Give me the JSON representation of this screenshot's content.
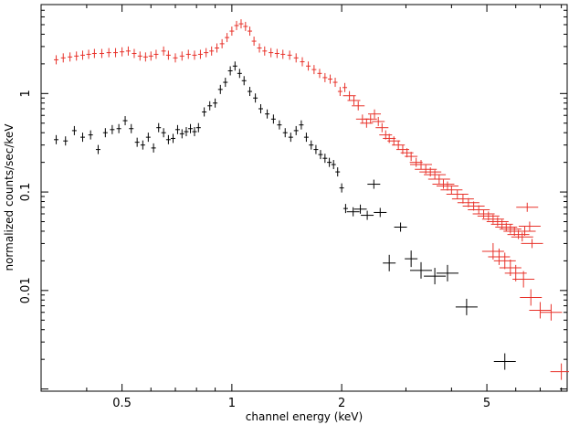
{
  "chart_data": {
    "type": "scatter",
    "xlabel": "channel energy (keV)",
    "ylabel": "normalized counts/sec/keV",
    "x_scale": "log",
    "y_scale": "log",
    "xlim": [
      0.3,
      8.3
    ],
    "ylim": [
      0.00095,
      8.0
    ],
    "x_ticks": [
      {
        "value": 0.5,
        "label": "0.5"
      },
      {
        "value": 1,
        "label": "1"
      },
      {
        "value": 2,
        "label": "2"
      },
      {
        "value": 5,
        "label": "5"
      }
    ],
    "y_ticks": [
      {
        "value": 1,
        "label": "1"
      },
      {
        "value": 0.1,
        "label": "0.1"
      },
      {
        "value": 0.01,
        "label": "0.01"
      }
    ],
    "grid": false,
    "legend": "none",
    "series": [
      {
        "color": "#e8322a",
        "points": [
          [
            0.33,
            2.2
          ],
          [
            0.345,
            2.3
          ],
          [
            0.36,
            2.35
          ],
          [
            0.375,
            2.4
          ],
          [
            0.39,
            2.45
          ],
          [
            0.405,
            2.5
          ],
          [
            0.42,
            2.55
          ],
          [
            0.44,
            2.55
          ],
          [
            0.46,
            2.6
          ],
          [
            0.48,
            2.6
          ],
          [
            0.5,
            2.65
          ],
          [
            0.52,
            2.7
          ],
          [
            0.54,
            2.55
          ],
          [
            0.56,
            2.4
          ],
          [
            0.58,
            2.35
          ],
          [
            0.6,
            2.4
          ],
          [
            0.62,
            2.5
          ],
          [
            0.65,
            2.7
          ],
          [
            0.67,
            2.45
          ],
          [
            0.7,
            2.3
          ],
          [
            0.73,
            2.4
          ],
          [
            0.76,
            2.5
          ],
          [
            0.79,
            2.45
          ],
          [
            0.82,
            2.5
          ],
          [
            0.85,
            2.6
          ],
          [
            0.88,
            2.7
          ],
          [
            0.91,
            2.9
          ],
          [
            0.94,
            3.2
          ],
          [
            0.97,
            3.7
          ],
          [
            1.0,
            4.3
          ],
          [
            1.03,
            4.9
          ],
          [
            1.06,
            5.1
          ],
          [
            1.09,
            4.8
          ],
          [
            1.12,
            4.3
          ],
          [
            1.15,
            3.4
          ],
          [
            1.19,
            2.9
          ],
          [
            1.23,
            2.7
          ],
          [
            1.28,
            2.6
          ],
          [
            1.33,
            2.55
          ],
          [
            1.38,
            2.5
          ],
          [
            1.44,
            2.45
          ],
          [
            1.5,
            2.3
          ],
          [
            1.56,
            2.1
          ],
          [
            1.62,
            1.9
          ],
          [
            1.68,
            1.75
          ],
          [
            1.74,
            1.6
          ],
          [
            1.8,
            1.45
          ],
          [
            1.86,
            1.4
          ],
          [
            1.92,
            1.3
          ],
          [
            1.98,
            1.05
          ],
          [
            2.04,
            1.15
          ],
          [
            2.1,
            0.95
          ],
          [
            2.16,
            0.85
          ],
          [
            2.22,
            0.75
          ],
          [
            2.28,
            0.55
          ],
          [
            2.34,
            0.5
          ],
          [
            2.4,
            0.55
          ],
          [
            2.46,
            0.62
          ],
          [
            2.52,
            0.52
          ],
          [
            2.58,
            0.45
          ],
          [
            2.64,
            0.38
          ],
          [
            2.7,
            0.35
          ],
          [
            2.78,
            0.33
          ],
          [
            2.86,
            0.3
          ],
          [
            2.94,
            0.27
          ],
          [
            3.02,
            0.25
          ],
          [
            3.1,
            0.23
          ],
          [
            3.2,
            0.2
          ],
          [
            3.3,
            0.19
          ],
          [
            3.4,
            0.17
          ],
          [
            3.5,
            0.16
          ],
          [
            3.6,
            0.15
          ],
          [
            3.7,
            0.135
          ],
          [
            3.8,
            0.12
          ],
          [
            3.9,
            0.115
          ],
          [
            4.0,
            0.105
          ],
          [
            4.15,
            0.095
          ],
          [
            4.3,
            0.085
          ],
          [
            4.45,
            0.078
          ],
          [
            4.6,
            0.072
          ],
          [
            4.75,
            0.066
          ],
          [
            4.9,
            0.06
          ],
          [
            5.05,
            0.057
          ],
          [
            5.2,
            0.053
          ],
          [
            5.35,
            0.05
          ],
          [
            5.5,
            0.047
          ],
          [
            5.65,
            0.044
          ],
          [
            5.8,
            0.042
          ],
          [
            5.95,
            0.04
          ],
          [
            6.1,
            0.037
          ],
          [
            6.25,
            0.035
          ],
          [
            6.35,
            0.04
          ],
          [
            6.45,
            0.07
          ],
          [
            6.55,
            0.045
          ],
          [
            6.65,
            0.03
          ],
          [
            5.2,
            0.025
          ],
          [
            5.4,
            0.022
          ],
          [
            5.6,
            0.02
          ],
          [
            5.8,
            0.017
          ],
          [
            6.0,
            0.015
          ],
          [
            6.3,
            0.013
          ],
          [
            6.6,
            0.0085
          ],
          [
            7.0,
            0.0063
          ],
          [
            7.5,
            0.006
          ],
          [
            8.0,
            0.0015
          ]
        ]
      },
      {
        "color": "#000000",
        "points": [
          [
            0.33,
            0.34
          ],
          [
            0.35,
            0.33
          ],
          [
            0.37,
            0.42
          ],
          [
            0.39,
            0.36
          ],
          [
            0.41,
            0.38
          ],
          [
            0.43,
            0.27
          ],
          [
            0.45,
            0.4
          ],
          [
            0.47,
            0.43
          ],
          [
            0.49,
            0.44
          ],
          [
            0.51,
            0.53
          ],
          [
            0.53,
            0.44
          ],
          [
            0.55,
            0.32
          ],
          [
            0.57,
            0.3
          ],
          [
            0.59,
            0.36
          ],
          [
            0.61,
            0.28
          ],
          [
            0.63,
            0.45
          ],
          [
            0.65,
            0.4
          ],
          [
            0.67,
            0.34
          ],
          [
            0.69,
            0.35
          ],
          [
            0.71,
            0.43
          ],
          [
            0.73,
            0.39
          ],
          [
            0.75,
            0.41
          ],
          [
            0.77,
            0.44
          ],
          [
            0.79,
            0.41
          ],
          [
            0.81,
            0.45
          ],
          [
            0.84,
            0.65
          ],
          [
            0.87,
            0.75
          ],
          [
            0.9,
            0.8
          ],
          [
            0.93,
            1.1
          ],
          [
            0.96,
            1.3
          ],
          [
            0.99,
            1.7
          ],
          [
            1.02,
            1.9
          ],
          [
            1.05,
            1.6
          ],
          [
            1.08,
            1.35
          ],
          [
            1.12,
            1.05
          ],
          [
            1.16,
            0.9
          ],
          [
            1.2,
            0.7
          ],
          [
            1.25,
            0.62
          ],
          [
            1.3,
            0.55
          ],
          [
            1.35,
            0.48
          ],
          [
            1.4,
            0.4
          ],
          [
            1.45,
            0.36
          ],
          [
            1.5,
            0.42
          ],
          [
            1.55,
            0.48
          ],
          [
            1.6,
            0.36
          ],
          [
            1.65,
            0.3
          ],
          [
            1.7,
            0.27
          ],
          [
            1.75,
            0.24
          ],
          [
            1.8,
            0.22
          ],
          [
            1.85,
            0.2
          ],
          [
            1.9,
            0.19
          ],
          [
            1.95,
            0.16
          ],
          [
            2.0,
            0.11
          ],
          [
            2.05,
            0.068
          ],
          [
            2.15,
            0.063
          ],
          [
            2.25,
            0.067
          ],
          [
            2.35,
            0.058
          ],
          [
            2.45,
            0.12
          ],
          [
            2.55,
            0.062
          ],
          [
            2.9,
            0.044
          ],
          [
            2.7,
            0.019
          ],
          [
            3.1,
            0.021
          ],
          [
            3.3,
            0.016
          ],
          [
            3.6,
            0.014
          ],
          [
            3.9,
            0.015
          ],
          [
            4.4,
            0.0068
          ],
          [
            5.6,
            0.0019
          ]
        ]
      }
    ]
  }
}
